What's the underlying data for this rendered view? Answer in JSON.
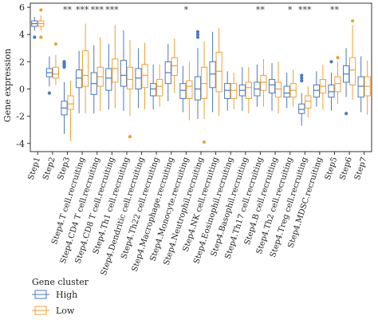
{
  "chart_data": {
    "type": "boxplot",
    "ylabel": "Gene expression",
    "ylim": [
      -4.6,
      6.3
    ],
    "yticks": [
      -4,
      -2,
      0,
      2,
      4,
      6
    ],
    "legend": {
      "title": "Gene cluster",
      "position": "bottom-left",
      "items": [
        {
          "label": "High",
          "color": "#4a78c2"
        },
        {
          "label": "Low",
          "color": "#f0a030"
        }
      ]
    },
    "categories": [
      "Step1",
      "Step2",
      "Step3",
      "Step4.T cell.recruiting",
      "Step4.CD4 T cell.recruiting",
      "Step4.CD8 T cell.recruiting",
      "Step4.Th1 cell.recruiting",
      "Step4.Dendritic cell.recruiting",
      "Step4.Th22 cell.recruiting",
      "Step4.Macrophage.recruiting",
      "Step4.Monocyte.recruiting",
      "Step4.Neutrophil.recruiting",
      "Step4.NK cell.recruiting",
      "Step4.Eosinophil.recruiting",
      "Step4.Basophil.recruiting",
      "Step4.Th17 cell.recruiting",
      "Step4.B cell.recruiting",
      "Step4.Th2 cell.recruiting",
      "Step4.Treg cell.recruiting",
      "Step4.MDSC.recruiting",
      "Step5",
      "Step6",
      "Step7"
    ],
    "significance": [
      "",
      "",
      "**",
      "***",
      "***",
      "***",
      "",
      "",
      "",
      "",
      "*",
      "",
      "",
      "",
      "",
      "**",
      "",
      "*",
      "***",
      "",
      "**",
      "",
      ""
    ],
    "series": [
      {
        "name": "High",
        "color": "#4a78c2",
        "boxes": [
          {
            "min": 4.3,
            "q1": 4.6,
            "median": 4.8,
            "q3": 5.0,
            "max": 5.3,
            "outliers": [
              3.8
            ]
          },
          {
            "min": 0.2,
            "q1": 0.9,
            "median": 1.2,
            "q3": 1.5,
            "max": 2.4,
            "outliers": [
              -0.3
            ]
          },
          {
            "min": -3.3,
            "q1": -1.9,
            "median": -1.4,
            "q3": -0.9,
            "max": 0.5,
            "outliers": [
              1.6,
              1.7,
              1.8,
              1.9,
              2.0
            ]
          },
          {
            "min": -1.8,
            "q1": 0.1,
            "median": 0.8,
            "q3": 1.4,
            "max": 2.8,
            "outliers": []
          },
          {
            "min": -1.8,
            "q1": -0.4,
            "median": 0.4,
            "q3": 1.2,
            "max": 3.2,
            "outliers": []
          },
          {
            "min": -1.5,
            "q1": -0.1,
            "median": 0.8,
            "q3": 1.5,
            "max": 3.3,
            "outliers": []
          },
          {
            "min": -1.6,
            "q1": 0.2,
            "median": 1.0,
            "q3": 2.1,
            "max": 4.3,
            "outliers": []
          },
          {
            "min": -1.4,
            "q1": 0.0,
            "median": 0.8,
            "q3": 1.5,
            "max": 3.0,
            "outliers": []
          },
          {
            "min": -1.5,
            "q1": -0.5,
            "median": 0.0,
            "q3": 0.4,
            "max": 1.8,
            "outliers": []
          },
          {
            "min": -0.9,
            "q1": 0.4,
            "median": 1.2,
            "q3": 2.0,
            "max": 3.3,
            "outliers": []
          },
          {
            "min": -1.7,
            "q1": -0.7,
            "median": -0.1,
            "q3": 0.4,
            "max": 1.7,
            "outliers": []
          },
          {
            "min": -2.2,
            "q1": -0.8,
            "median": 0.0,
            "q3": 0.9,
            "max": 3.0,
            "outliers": [
              3.8,
              4.0,
              4.2
            ]
          },
          {
            "min": -1.7,
            "q1": 0.1,
            "median": 1.1,
            "q3": 2.0,
            "max": 4.2,
            "outliers": []
          },
          {
            "min": -1.6,
            "q1": -0.7,
            "median": -0.1,
            "q3": 0.4,
            "max": 1.3,
            "outliers": []
          },
          {
            "min": -1.6,
            "q1": -0.5,
            "median": -0.1,
            "q3": 0.3,
            "max": 1.6,
            "outliers": []
          },
          {
            "min": -1.3,
            "q1": -0.5,
            "median": 0.0,
            "q3": 0.5,
            "max": 1.8,
            "outliers": []
          },
          {
            "min": -1.6,
            "q1": -0.3,
            "median": 0.3,
            "q3": 0.7,
            "max": 1.9,
            "outliers": []
          },
          {
            "min": -1.4,
            "q1": -0.6,
            "median": -0.3,
            "q3": 0.2,
            "max": 1.2,
            "outliers": []
          },
          {
            "min": -2.7,
            "q1": -1.8,
            "median": -1.5,
            "q3": -1.1,
            "max": -0.3,
            "outliers": [
              0.6,
              0.8,
              1.0
            ]
          },
          {
            "min": -1.3,
            "q1": -0.6,
            "median": -0.1,
            "q3": 0.3,
            "max": 1.3,
            "outliers": []
          },
          {
            "min": -1.6,
            "q1": -0.6,
            "median": -0.2,
            "q3": 0.3,
            "max": 1.2,
            "outliers": [
              2.0
            ]
          },
          {
            "min": -0.6,
            "q1": 0.5,
            "median": 1.1,
            "q3": 1.7,
            "max": 3.0,
            "outliers": [
              -1.8
            ]
          },
          {
            "min": -1.7,
            "q1": -0.6,
            "median": 0.2,
            "q3": 0.9,
            "max": 2.4,
            "outliers": []
          }
        ]
      },
      {
        "name": "Low",
        "color": "#f0a030",
        "boxes": [
          {
            "min": 4.3,
            "q1": 4.6,
            "median": 4.8,
            "q3": 5.0,
            "max": 5.4,
            "outliers": [
              5.8,
              3.8
            ]
          },
          {
            "min": 0.3,
            "q1": 0.8,
            "median": 1.1,
            "q3": 1.6,
            "max": 2.5,
            "outliers": [
              3.3
            ]
          },
          {
            "min": -3.8,
            "q1": -1.5,
            "median": -1.1,
            "q3": -0.5,
            "max": 0.6,
            "outliers": []
          },
          {
            "min": -1.8,
            "q1": 0.2,
            "median": 1.0,
            "q3": 2.8,
            "max": 4.8,
            "outliers": []
          },
          {
            "min": -1.6,
            "q1": 0.2,
            "median": 0.9,
            "q3": 1.6,
            "max": 3.8,
            "outliers": []
          },
          {
            "min": -1.4,
            "q1": 0.5,
            "median": 1.5,
            "q3": 2.2,
            "max": 4.7,
            "outliers": []
          },
          {
            "min": -2.0,
            "q1": 0.0,
            "median": 0.7,
            "q3": 1.6,
            "max": 3.6,
            "outliers": [
              -3.5
            ]
          },
          {
            "min": -1.5,
            "q1": 0.1,
            "median": 1.0,
            "q3": 1.8,
            "max": 3.4,
            "outliers": []
          },
          {
            "min": -1.3,
            "q1": -0.5,
            "median": 0.2,
            "q3": 0.7,
            "max": 1.8,
            "outliers": []
          },
          {
            "min": -0.3,
            "q1": 1.0,
            "median": 1.7,
            "q3": 2.3,
            "max": 3.7,
            "outliers": []
          },
          {
            "min": -2.3,
            "q1": -0.7,
            "median": 0.2,
            "q3": 0.6,
            "max": 2.0,
            "outliers": []
          },
          {
            "min": -2.2,
            "q1": -0.7,
            "median": 0.4,
            "q3": 1.6,
            "max": 3.5,
            "outliers": [
              -3.9
            ]
          },
          {
            "min": -2.0,
            "q1": -0.2,
            "median": 1.3,
            "q3": 2.7,
            "max": 4.5,
            "outliers": []
          },
          {
            "min": -1.5,
            "q1": -0.7,
            "median": -0.1,
            "q3": 0.4,
            "max": 1.2,
            "outliers": []
          },
          {
            "min": -1.8,
            "q1": -0.7,
            "median": 0.1,
            "q3": 0.5,
            "max": 1.6,
            "outliers": []
          },
          {
            "min": -1.3,
            "q1": -0.1,
            "median": 0.5,
            "q3": 1.0,
            "max": 2.2,
            "outliers": []
          },
          {
            "min": -1.8,
            "q1": -0.6,
            "median": 0.0,
            "q3": 0.5,
            "max": 2.0,
            "outliers": []
          },
          {
            "min": -1.3,
            "q1": -0.6,
            "median": -0.1,
            "q3": 0.4,
            "max": 1.4,
            "outliers": []
          },
          {
            "min": -2.1,
            "q1": -1.4,
            "median": -0.9,
            "q3": -0.5,
            "max": 0.2,
            "outliers": []
          },
          {
            "min": -1.5,
            "q1": -0.3,
            "median": 0.2,
            "q3": 0.7,
            "max": 1.8,
            "outliers": []
          },
          {
            "min": -1.1,
            "q1": -0.2,
            "median": 0.4,
            "q3": 0.9,
            "max": 2.0,
            "outliers": [
              2.3
            ]
          },
          {
            "min": -0.8,
            "q1": 0.3,
            "median": 1.4,
            "q3": 2.3,
            "max": 4.7,
            "outliers": [
              5.0
            ]
          },
          {
            "min": -1.9,
            "q1": -0.5,
            "median": 0.2,
            "q3": 0.9,
            "max": 2.1,
            "outliers": []
          }
        ]
      }
    ]
  }
}
